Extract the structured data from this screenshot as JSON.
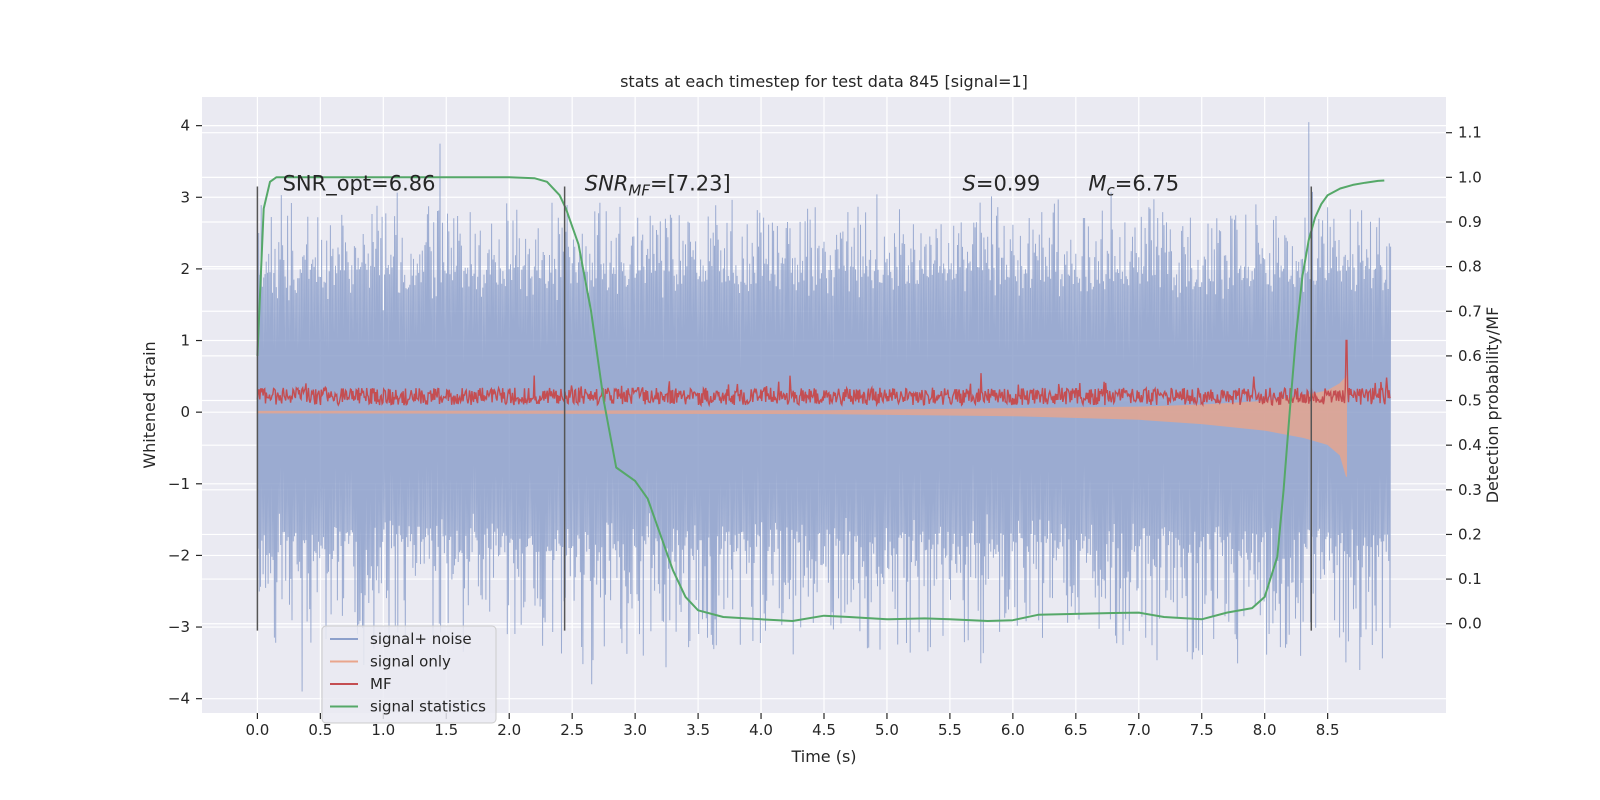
{
  "chart_data": {
    "type": "line",
    "title": "stats at each timestep for test data 845 [signal=1]",
    "xlabel": "Time (s)",
    "ylabel": "Whitened strain",
    "ylabel_right": "Detection probability/MF",
    "xlim": [
      -0.44,
      9.44
    ],
    "ylim": [
      -4.2,
      4.4
    ],
    "ylim_right": [
      -0.2,
      1.18
    ],
    "x_ticks": [
      0.0,
      0.5,
      1.0,
      1.5,
      2.0,
      2.5,
      3.0,
      3.5,
      4.0,
      4.5,
      5.0,
      5.5,
      6.0,
      6.5,
      7.0,
      7.5,
      8.0,
      8.5
    ],
    "x_tick_labels": [
      "0.0",
      "0.5",
      "1.0",
      "1.5",
      "2.0",
      "2.5",
      "3.0",
      "3.5",
      "4.0",
      "4.5",
      "5.0",
      "5.5",
      "6.0",
      "6.5",
      "7.0",
      "7.5",
      "8.0",
      "8.5"
    ],
    "y_ticks": [
      -4,
      -3,
      -2,
      -1,
      0,
      1,
      2,
      3,
      4
    ],
    "y_tick_labels": [
      "−4",
      "−3",
      "−2",
      "−1",
      "0",
      "1",
      "2",
      "3",
      "4"
    ],
    "y2_ticks": [
      0.0,
      0.1,
      0.2,
      0.3,
      0.4,
      0.5,
      0.6,
      0.7,
      0.8,
      0.9,
      1.0,
      1.1
    ],
    "y2_tick_labels": [
      "0.0",
      "0.1",
      "0.2",
      "0.3",
      "0.4",
      "0.5",
      "0.6",
      "0.7",
      "0.8",
      "0.9",
      "1.0",
      "1.1"
    ],
    "vertical_lines": [
      0.0,
      2.44,
      8.37
    ],
    "vertical_line_range": [
      -3.05,
      3.15
    ],
    "annotations": [
      {
        "x": 0.2,
        "y": 3.15,
        "text": "SNR_opt=6.86"
      },
      {
        "x": 2.6,
        "y": 3.15,
        "text": "=[7.23]",
        "math_prefix": "SNR",
        "math_sub": "MF"
      },
      {
        "x": 5.6,
        "y": 3.15,
        "text": "=0.99",
        "math_prefix": "S"
      },
      {
        "x": 6.6,
        "y": 3.15,
        "text": "=6.75",
        "math_prefix": "M",
        "math_sub": "c"
      }
    ],
    "legend_position": "lower-left",
    "series": [
      {
        "name": "signal+ noise",
        "color": "#8da0cb",
        "axis": "left",
        "x_range": [
          0.0,
          9.0
        ],
        "envelope": {
          "upper": [
            1.8,
            2.9
          ],
          "lower": [
            -1.7,
            -3.4
          ]
        },
        "notable_peaks": [
          {
            "x": 1.45,
            "y": 3.75
          },
          {
            "x": 8.35,
            "y": 4.05
          },
          {
            "x": 0.35,
            "y": -3.9
          },
          {
            "x": 2.65,
            "y": -3.8
          },
          {
            "x": 8.75,
            "y": -3.6
          }
        ]
      },
      {
        "name": "signal only",
        "color": "#e9a58c",
        "axis": "left",
        "x": [
          0.0,
          4.5,
          6.0,
          7.0,
          7.5,
          8.0,
          8.3,
          8.5,
          8.6,
          8.65
        ],
        "upper": [
          0.01,
          0.02,
          0.05,
          0.07,
          0.1,
          0.15,
          0.22,
          0.3,
          0.4,
          0.5
        ],
        "lower": [
          -0.01,
          -0.02,
          -0.05,
          -0.1,
          -0.16,
          -0.25,
          -0.35,
          -0.45,
          -0.6,
          -0.9
        ]
      },
      {
        "name": "MF",
        "color": "#c44e52",
        "axis": "left",
        "x_range": [
          0.0,
          9.0
        ],
        "baseline": 0.22,
        "amplitude": 0.22,
        "spike": {
          "x": 8.65,
          "y": 1.0
        }
      },
      {
        "name": "signal statistics",
        "color": "#55a868",
        "axis": "right",
        "x": [
          0.0,
          0.05,
          0.1,
          0.15,
          0.2,
          0.3,
          0.5,
          1.0,
          1.5,
          2.0,
          2.2,
          2.3,
          2.4,
          2.45,
          2.55,
          2.65,
          2.75,
          2.85,
          3.0,
          3.1,
          3.2,
          3.3,
          3.4,
          3.5,
          3.7,
          4.0,
          4.25,
          4.5,
          4.7,
          5.0,
          5.3,
          5.5,
          5.8,
          6.0,
          6.2,
          6.5,
          6.8,
          7.0,
          7.2,
          7.5,
          7.7,
          7.9,
          8.0,
          8.1,
          8.15,
          8.2,
          8.25,
          8.3,
          8.35,
          8.4,
          8.45,
          8.5,
          8.6,
          8.7,
          8.8,
          8.9,
          8.95
        ],
        "y": [
          0.6,
          0.93,
          0.99,
          1.0,
          1.0,
          1.0,
          1.0,
          1.0,
          1.0,
          1.0,
          0.998,
          0.99,
          0.96,
          0.93,
          0.85,
          0.7,
          0.5,
          0.35,
          0.32,
          0.28,
          0.2,
          0.12,
          0.06,
          0.03,
          0.015,
          0.01,
          0.006,
          0.018,
          0.015,
          0.01,
          0.012,
          0.01,
          0.006,
          0.008,
          0.02,
          0.022,
          0.024,
          0.025,
          0.015,
          0.01,
          0.025,
          0.035,
          0.06,
          0.15,
          0.3,
          0.48,
          0.65,
          0.78,
          0.86,
          0.91,
          0.94,
          0.96,
          0.975,
          0.983,
          0.988,
          0.992,
          0.993
        ]
      }
    ]
  }
}
